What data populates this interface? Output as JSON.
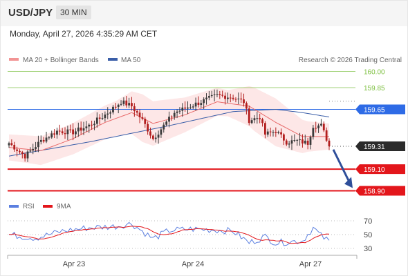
{
  "header": {
    "pair": "USD/JPY",
    "timeframe": "30 MIN"
  },
  "datetime": "Monday, April 27, 2026 4:35:29 AM CET",
  "legend": {
    "ma20": "MA 20 + Bollinger Bands",
    "ma50": "MA 50",
    "copyright": "Research © 2026 Trading Central",
    "rsi": "RSI",
    "ma9": "9MA"
  },
  "colors": {
    "ma20": "#e86a6a",
    "bollinger_fill": "#fde3e3",
    "ma50": "#3a5ea8",
    "resistance": "#7cbf3f",
    "pivot": "#2e6be6",
    "support": "#e3161b",
    "candle_up": "#3a3a3a",
    "candle_down": "#b21e1e",
    "rsi": "#5b7fe0",
    "rsi_ma": "#e3161b",
    "arrow": "#2f4f9a"
  },
  "chart_data": [
    {
      "type": "candlestick",
      "title": "USD/JPY",
      "timeframe": "30 MIN",
      "x_ticks": [
        "Apr 23",
        "Apr 24",
        "Apr 27"
      ],
      "ylim": [
        158.84,
        160.06
      ],
      "last_price": 159.31,
      "levels": [
        {
          "name": "Resistance 2",
          "value": 160.0,
          "label": "160.00"
        },
        {
          "name": "Resistance 1",
          "value": 159.85,
          "label": "159.85"
        },
        {
          "name": "Pivot",
          "value": 159.65,
          "label": "159.65"
        },
        {
          "name": "Last",
          "value": 159.31,
          "label": "159.31"
        },
        {
          "name": "Support 1",
          "value": 159.1,
          "label": "159.10"
        },
        {
          "name": "Support 2",
          "value": 158.9,
          "label": "158.90"
        }
      ],
      "forecast_arrow": {
        "from": 159.28,
        "to": 158.9
      },
      "close_anchors": [
        [
          0,
          159.34
        ],
        [
          6,
          159.22
        ],
        [
          12,
          159.36
        ],
        [
          18,
          159.45
        ],
        [
          24,
          159.44
        ],
        [
          30,
          159.5
        ],
        [
          36,
          159.6
        ],
        [
          42,
          159.72
        ],
        [
          46,
          159.68
        ],
        [
          50,
          159.55
        ],
        [
          54,
          159.38
        ],
        [
          58,
          159.5
        ],
        [
          62,
          159.62
        ],
        [
          66,
          159.66
        ],
        [
          72,
          159.72
        ],
        [
          78,
          159.78
        ],
        [
          84,
          159.76
        ],
        [
          88,
          159.72
        ],
        [
          90,
          159.55
        ],
        [
          94,
          159.58
        ],
        [
          96,
          159.42
        ],
        [
          100,
          159.45
        ],
        [
          104,
          159.35
        ],
        [
          108,
          159.36
        ],
        [
          112,
          159.34
        ],
        [
          114,
          159.5
        ],
        [
          117,
          159.5
        ],
        [
          120,
          159.32
        ]
      ],
      "ma20_anchors": [
        [
          0,
          159.3
        ],
        [
          12,
          159.27
        ],
        [
          24,
          159.38
        ],
        [
          36,
          159.53
        ],
        [
          46,
          159.62
        ],
        [
          54,
          159.52
        ],
        [
          66,
          159.6
        ],
        [
          78,
          159.72
        ],
        [
          90,
          159.68
        ],
        [
          100,
          159.53
        ],
        [
          110,
          159.4
        ],
        [
          120,
          159.4
        ]
      ],
      "ma50_anchors": [
        [
          0,
          159.22
        ],
        [
          30,
          159.35
        ],
        [
          60,
          159.5
        ],
        [
          84,
          159.63
        ],
        [
          100,
          159.65
        ],
        [
          110,
          159.62
        ],
        [
          120,
          159.58
        ]
      ],
      "bollinger_halfwidth_anchors": [
        [
          0,
          0.12
        ],
        [
          20,
          0.14
        ],
        [
          40,
          0.16
        ],
        [
          50,
          0.22
        ],
        [
          66,
          0.16
        ],
        [
          82,
          0.12
        ],
        [
          92,
          0.2
        ],
        [
          100,
          0.22
        ],
        [
          112,
          0.14
        ],
        [
          120,
          0.12
        ]
      ]
    },
    {
      "type": "line",
      "title": "RSI",
      "series": [
        {
          "name": "RSI"
        },
        {
          "name": "9MA"
        }
      ],
      "yticks": [
        70,
        50,
        30
      ],
      "ylim": [
        25,
        75
      ],
      "rsi_anchors": [
        [
          0,
          50
        ],
        [
          10,
          45
        ],
        [
          20,
          55
        ],
        [
          30,
          60
        ],
        [
          40,
          62
        ],
        [
          46,
          66
        ],
        [
          54,
          44
        ],
        [
          60,
          56
        ],
        [
          68,
          58
        ],
        [
          76,
          57
        ],
        [
          84,
          55
        ],
        [
          90,
          38
        ],
        [
          96,
          47
        ],
        [
          100,
          38
        ],
        [
          106,
          40
        ],
        [
          110,
          41
        ],
        [
          114,
          60
        ],
        [
          117,
          48
        ],
        [
          120,
          40
        ]
      ]
    }
  ]
}
